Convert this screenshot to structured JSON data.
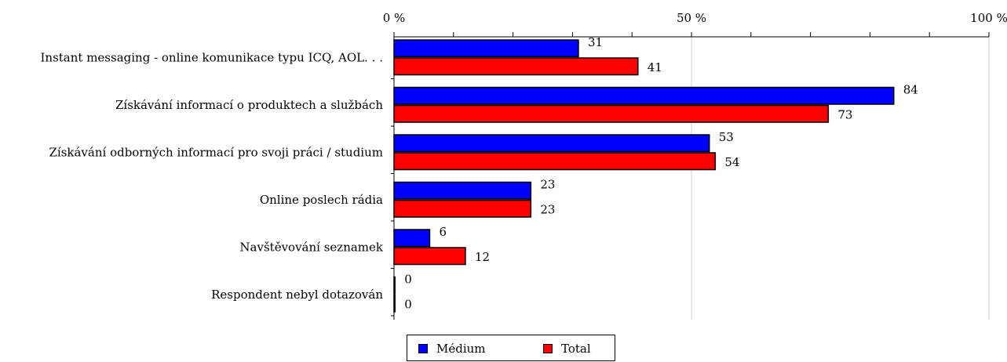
{
  "chart_data": {
    "type": "bar",
    "orientation": "horizontal",
    "categories": [
      "Instant messaging - online komunikace typu ICQ, AOL. . .",
      "Získávání informací o produktech a službách",
      "Získávání odborných informací pro svoji práci / studium",
      "Online poslech rádia",
      "Navštěvování seznamek",
      "Respondent nebyl dotazován"
    ],
    "series": [
      {
        "name": "Médium",
        "color": "#0000ff",
        "values": [
          31,
          84,
          53,
          23,
          6,
          0
        ]
      },
      {
        "name": "Total",
        "color": "#ff0000",
        "values": [
          41,
          73,
          54,
          23,
          12,
          0
        ]
      }
    ],
    "xlim": [
      0,
      100
    ],
    "xticks": [
      0,
      50,
      100
    ],
    "xtick_labels": [
      "0 %",
      "50 %",
      "100 %"
    ],
    "axis_position": "top",
    "grid": "vertical",
    "legend_position": "bottom"
  }
}
